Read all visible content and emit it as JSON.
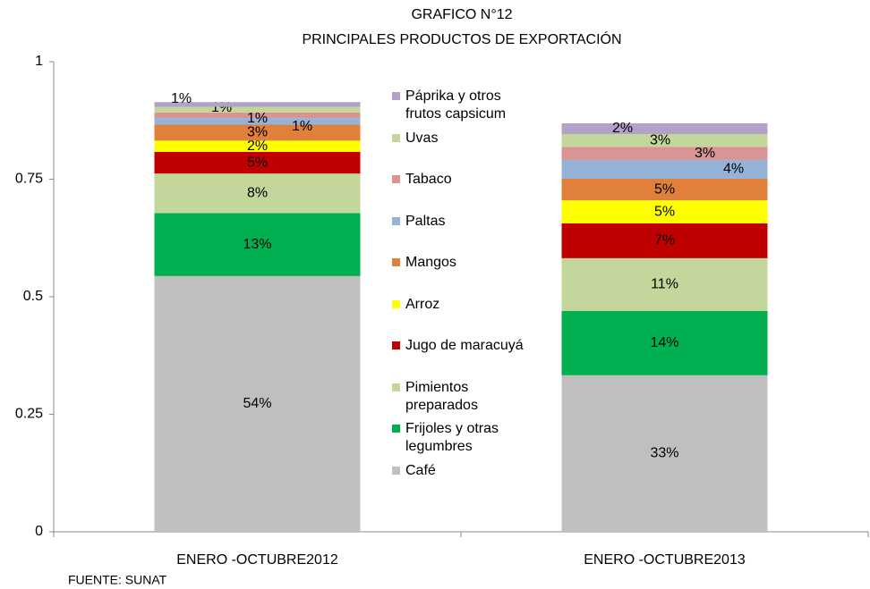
{
  "chart_data": {
    "type": "stacked_bar",
    "title": "GRAFICO N°12",
    "subtitle": "PRINCIPALES PRODUCTOS DE EXPORTACIÓN",
    "source": "FUENTE: SUNAT",
    "categories": [
      "ENERO -OCTUBRE2012",
      "ENERO -OCTUBRE2013"
    ],
    "ylim": [
      0,
      1
    ],
    "yticks": [
      0,
      0.25,
      0.5,
      0.75,
      1
    ],
    "grid": false,
    "legend": "center",
    "series": [
      {
        "name": "Café",
        "color": "#bfbfbf",
        "values": [
          0.544,
          0.333
        ],
        "value_labels": [
          "54%",
          "33%"
        ]
      },
      {
        "name": "Frijoles y otras legumbres",
        "color": "#00b050",
        "values": [
          0.134,
          0.137
        ],
        "value_labels": [
          "13%",
          "14%"
        ]
      },
      {
        "name": "Pimientos preparados",
        "color": "#c3d69b",
        "values": [
          0.084,
          0.112
        ],
        "value_labels": [
          "8%",
          "11%"
        ]
      },
      {
        "name": "Jugo de maracuyá",
        "color": "#c00000",
        "values": [
          0.046,
          0.074
        ],
        "value_labels": [
          "5%",
          "7%"
        ]
      },
      {
        "name": "Arroz",
        "color": "#ffff00",
        "values": [
          0.024,
          0.049
        ],
        "value_labels": [
          "2%",
          "5%"
        ]
      },
      {
        "name": "Mangos",
        "color": "#e0803a",
        "values": [
          0.034,
          0.046
        ],
        "value_labels": [
          "3%",
          "5%"
        ]
      },
      {
        "name": "Paltas",
        "color": "#95b3d7",
        "values": [
          0.014,
          0.04
        ],
        "value_labels": [
          "1%",
          "4%"
        ]
      },
      {
        "name": "Tabaco",
        "color": "#d99594",
        "values": [
          0.012,
          0.028
        ],
        "value_labels": [
          "1%",
          "3%"
        ]
      },
      {
        "name": "Uvas",
        "color": "#c3d69b",
        "values": [
          0.012,
          0.027
        ],
        "value_labels": [
          "1%",
          "3%"
        ]
      },
      {
        "name": "Páprika y otros frutos capsicum",
        "color": "#b3a2c7",
        "values": [
          0.01,
          0.023
        ],
        "value_labels": [
          "1%",
          "2%"
        ]
      }
    ]
  }
}
